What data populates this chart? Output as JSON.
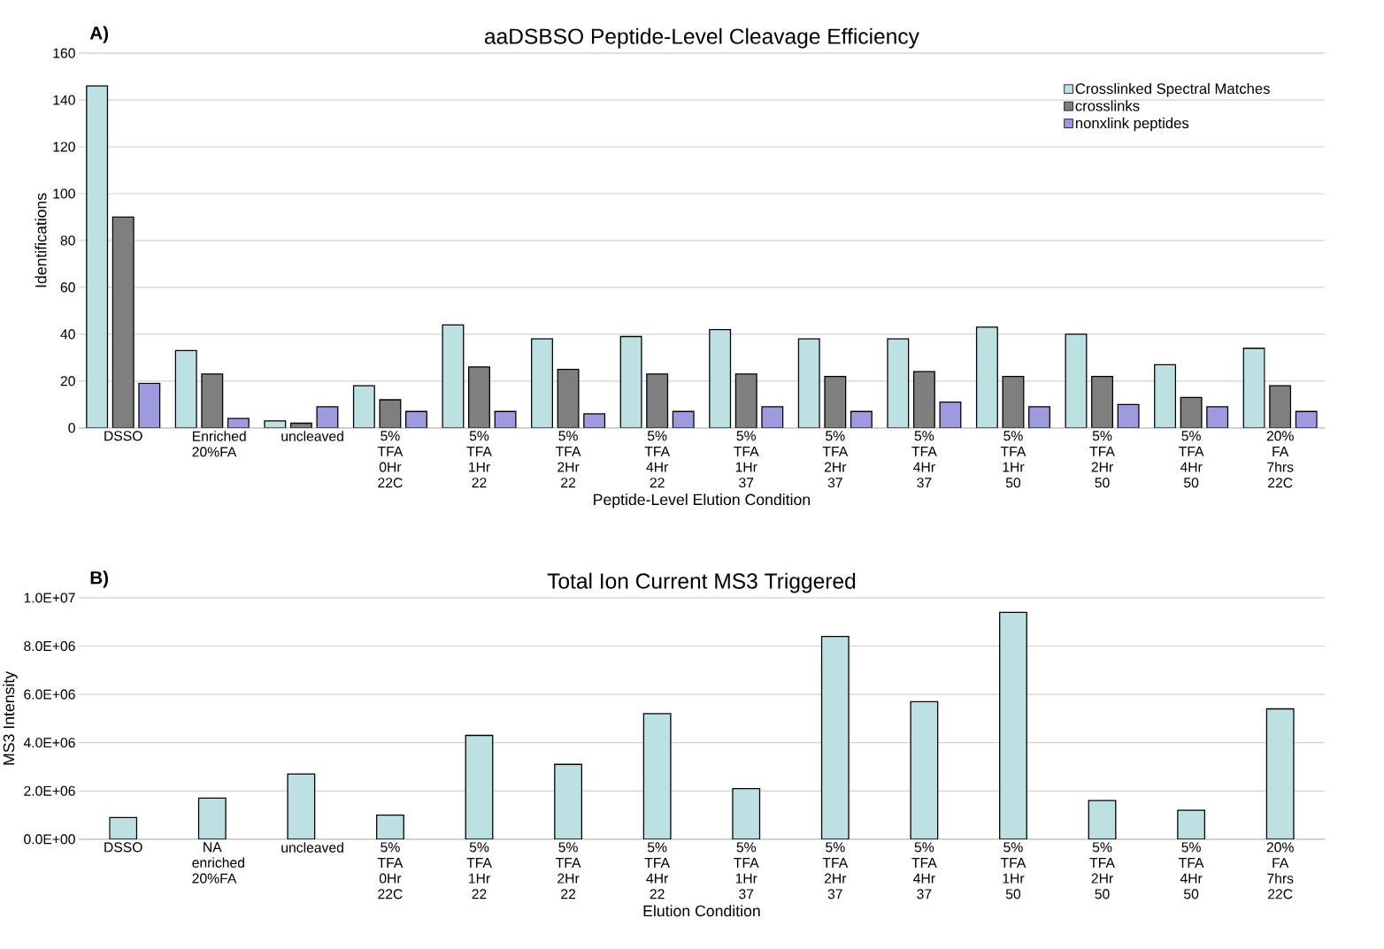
{
  "chart_data": [
    {
      "type": "bar",
      "title": "aaDSBSO Peptide-Level Cleavage Efficiency",
      "xlabel": "Peptide-Level Elution Condition",
      "ylabel": "Identifications",
      "annotations": [
        "A)"
      ],
      "categories": [
        "DSSO",
        "Enriched 20%FA",
        "uncleaved",
        "5% TFA 0Hr 22C",
        "5% TFA 1Hr 22",
        "5% TFA 2Hr 22",
        "5% TFA 4Hr 22",
        "5% TFA 1Hr 37",
        "5% TFA 2Hr 37",
        "5% TFA 4Hr 37",
        "5% TFA 1Hr 50",
        "5% TFA 2Hr 50",
        "5% TFA 4Hr 50",
        "20% FA 7hrs 22C"
      ],
      "series": [
        {
          "name": "Crosslinked Spectral Matches",
          "color": "#bde0e3",
          "values": [
            146,
            33,
            3,
            18,
            44,
            38,
            39,
            42,
            38,
            38,
            43,
            40,
            27,
            34
          ]
        },
        {
          "name": "crosslinks",
          "color": "#7f7f7f",
          "values": [
            90,
            23,
            2,
            12,
            26,
            25,
            23,
            23,
            22,
            24,
            22,
            22,
            13,
            18
          ]
        },
        {
          "name": "nonxlink peptides",
          "color": "#9e9ae0",
          "values": [
            19,
            4,
            9,
            7,
            7,
            6,
            7,
            9,
            7,
            11,
            9,
            10,
            9,
            7
          ]
        }
      ],
      "ylim": [
        0,
        160
      ],
      "yticks": [
        0,
        20,
        40,
        60,
        80,
        100,
        120,
        140,
        160
      ],
      "grid": "y",
      "legend": "top right"
    },
    {
      "type": "bar",
      "title": "Total Ion Current MS3 Triggered",
      "xlabel": "Elution Condition",
      "ylabel": "MS3 Intensity",
      "annotations": [
        "B)"
      ],
      "categories": [
        "DSSO",
        "NA enriched 20%FA",
        "uncleaved",
        "5% TFA 0Hr 22C",
        "5% TFA 1Hr 22",
        "5% TFA 2Hr 22",
        "5% TFA 4Hr 22",
        "5% TFA 1Hr 37",
        "5% TFA 2Hr 37",
        "5% TFA 4Hr 37",
        "5% TFA 1Hr 50",
        "5% TFA 2Hr 50",
        "5% TFA 4Hr 50",
        "20% FA 7hrs 22C"
      ],
      "series": [
        {
          "color": "#bde0e3",
          "values": [
            900000,
            1700000,
            2700000,
            1000000,
            4300000,
            3100000,
            5200000,
            2100000,
            8400000,
            5700000,
            9400000,
            1600000,
            1200000,
            5400000
          ]
        }
      ],
      "ylim": [
        0,
        10000000
      ],
      "yticks": [
        {
          "value": 0,
          "label": "0.0E+00"
        },
        {
          "value": 2000000,
          "label": "2.0E+06"
        },
        {
          "value": 4000000,
          "label": "4.0E+06"
        },
        {
          "value": 6000000,
          "label": "6.0E+06"
        },
        {
          "value": 8000000,
          "label": "8.0E+06"
        },
        {
          "value": 10000000,
          "label": "1.0E+07"
        }
      ],
      "grid": "y"
    }
  ]
}
